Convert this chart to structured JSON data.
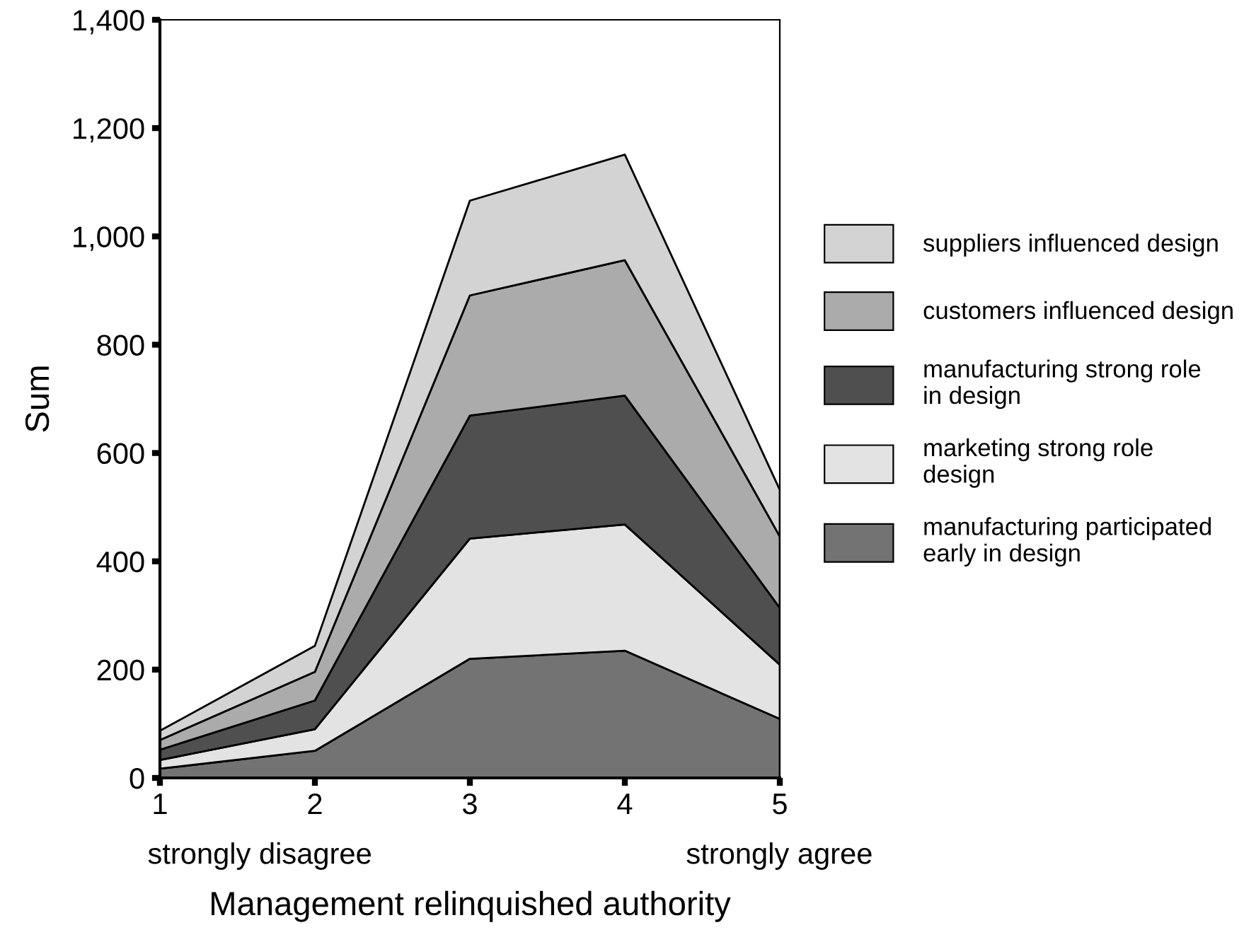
{
  "chart_data": {
    "type": "area",
    "stacked": true,
    "categories": [
      "1",
      "2",
      "3",
      "4",
      "5"
    ],
    "xlabel": "Management relinquished authority",
    "ylabel": "Sum",
    "ylim": [
      0,
      1400
    ],
    "yticks": [
      0,
      200,
      400,
      600,
      800,
      {
        "value": 1000,
        "label": "1,000"
      },
      {
        "value": 1200,
        "label": "1,200"
      },
      {
        "value": 1400,
        "label": "1,400"
      }
    ],
    "legend": "right",
    "annotations": [
      "strongly disagree",
      "strongly agree"
    ],
    "series": [
      {
        "name": "manufacturing participated\nearly in design",
        "color": "#737373",
        "values": [
          17,
          50,
          220,
          235,
          109
        ]
      },
      {
        "name": "marketing strong role\ndesign",
        "color": "#e3e3e3",
        "values": [
          16,
          40,
          222,
          233,
          100
        ]
      },
      {
        "name": "manufacturing strong role\nin design",
        "color": "#4f4f4f",
        "values": [
          19,
          53,
          227,
          238,
          105
        ]
      },
      {
        "name": "customers influenced design",
        "color": "#ababab",
        "values": [
          18,
          53,
          222,
          250,
          132
        ]
      },
      {
        "name": "suppliers influenced design",
        "color": "#d3d3d3",
        "values": [
          17,
          48,
          175,
          195,
          86
        ]
      }
    ]
  }
}
